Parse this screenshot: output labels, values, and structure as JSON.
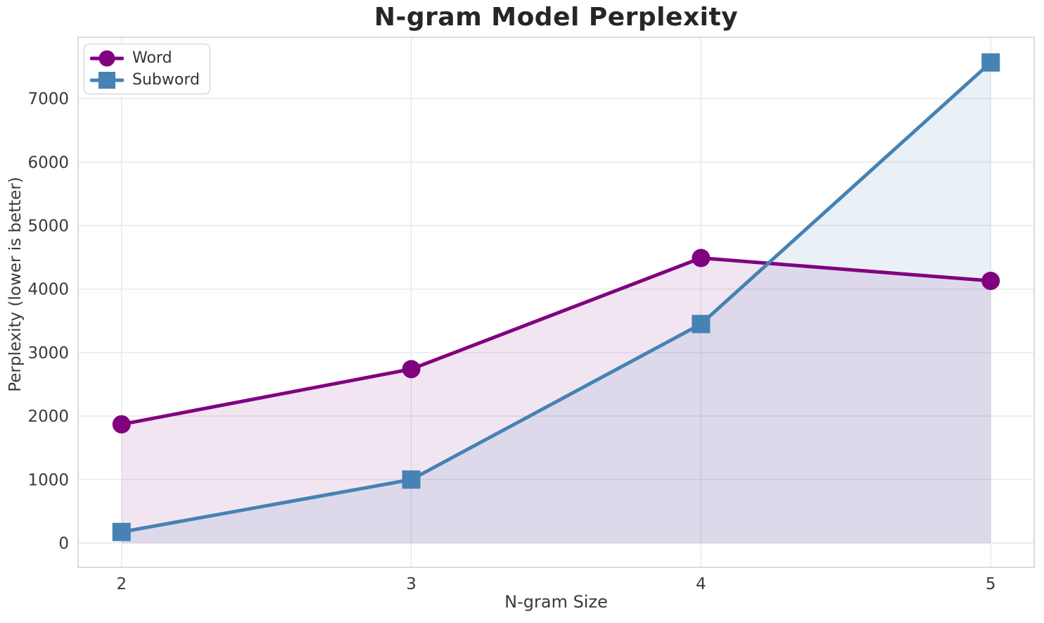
{
  "chart_data": {
    "type": "line",
    "title": "N-gram Model Perplexity",
    "xlabel": "N-gram Size",
    "ylabel": "Perplexity (lower is better)",
    "x": [
      2,
      3,
      4,
      5
    ],
    "x_tick_labels": [
      "2",
      "3",
      "4",
      "5"
    ],
    "y_ticks": [
      0,
      1000,
      2000,
      3000,
      4000,
      5000,
      6000,
      7000
    ],
    "xlim": [
      1.85,
      5.15
    ],
    "ylim": [
      -383,
      7966
    ],
    "grid": true,
    "legend_position": "upper left",
    "fill_baseline": 0,
    "series": [
      {
        "name": "Word",
        "color": "#800080",
        "marker": "circle",
        "fill_opacity": 0.1,
        "values": [
          1870,
          2740,
          4490,
          4130
        ]
      },
      {
        "name": "Subword",
        "color": "#4682B4",
        "marker": "square",
        "fill_opacity": 0.12,
        "values": [
          175,
          1000,
          3450,
          7570
        ]
      }
    ],
    "colors": {
      "grid": "#e6e6e6",
      "spine": "#d0d0d0",
      "tick_text": "#3a3a3a",
      "title_text": "#262626"
    }
  }
}
